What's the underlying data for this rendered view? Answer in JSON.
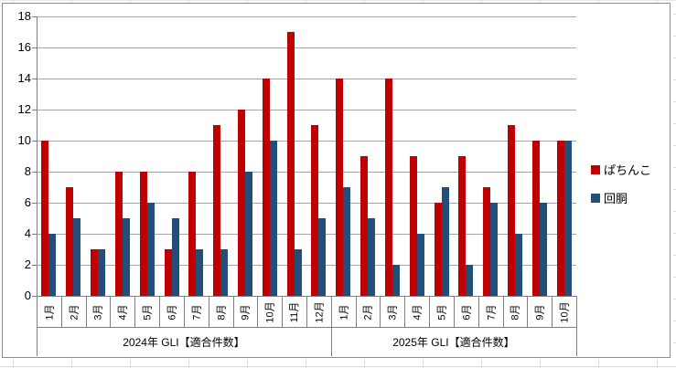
{
  "chart_data": {
    "type": "bar",
    "title": "",
    "categories": [
      "1月",
      "2月",
      "3月",
      "4月",
      "5月",
      "6月",
      "7月",
      "8月",
      "9月",
      "10月",
      "11月",
      "12月",
      "1月",
      "2月",
      "3月",
      "4月",
      "5月",
      "6月",
      "7月",
      "8月",
      "9月",
      "10月"
    ],
    "category_groups": [
      {
        "label": "2024年 GLI【適合件数】",
        "count": 12
      },
      {
        "label": "2025年 GLI【適合件数】",
        "count": 10
      }
    ],
    "series": [
      {
        "name": "ぱちんこ",
        "color": "#c00000",
        "values": [
          10,
          7,
          3,
          8,
          8,
          3,
          8,
          11,
          12,
          14,
          17,
          11,
          14,
          9,
          14,
          9,
          6,
          9,
          7,
          11,
          10,
          10
        ]
      },
      {
        "name": "回胴",
        "color": "#234e79",
        "values": [
          4,
          5,
          3,
          5,
          6,
          5,
          3,
          3,
          8,
          10,
          3,
          5,
          7,
          5,
          2,
          4,
          7,
          2,
          6,
          4,
          6,
          10
        ]
      }
    ],
    "ylim": [
      0,
      18
    ],
    "ytick_step": 2,
    "xlabel": "",
    "ylabel": "",
    "grid": true,
    "legend_position": "right",
    "colors": {
      "gridline": "#a6a6a6",
      "axis": "#7f7f7f",
      "chart_border": "#8c8c8c"
    }
  }
}
